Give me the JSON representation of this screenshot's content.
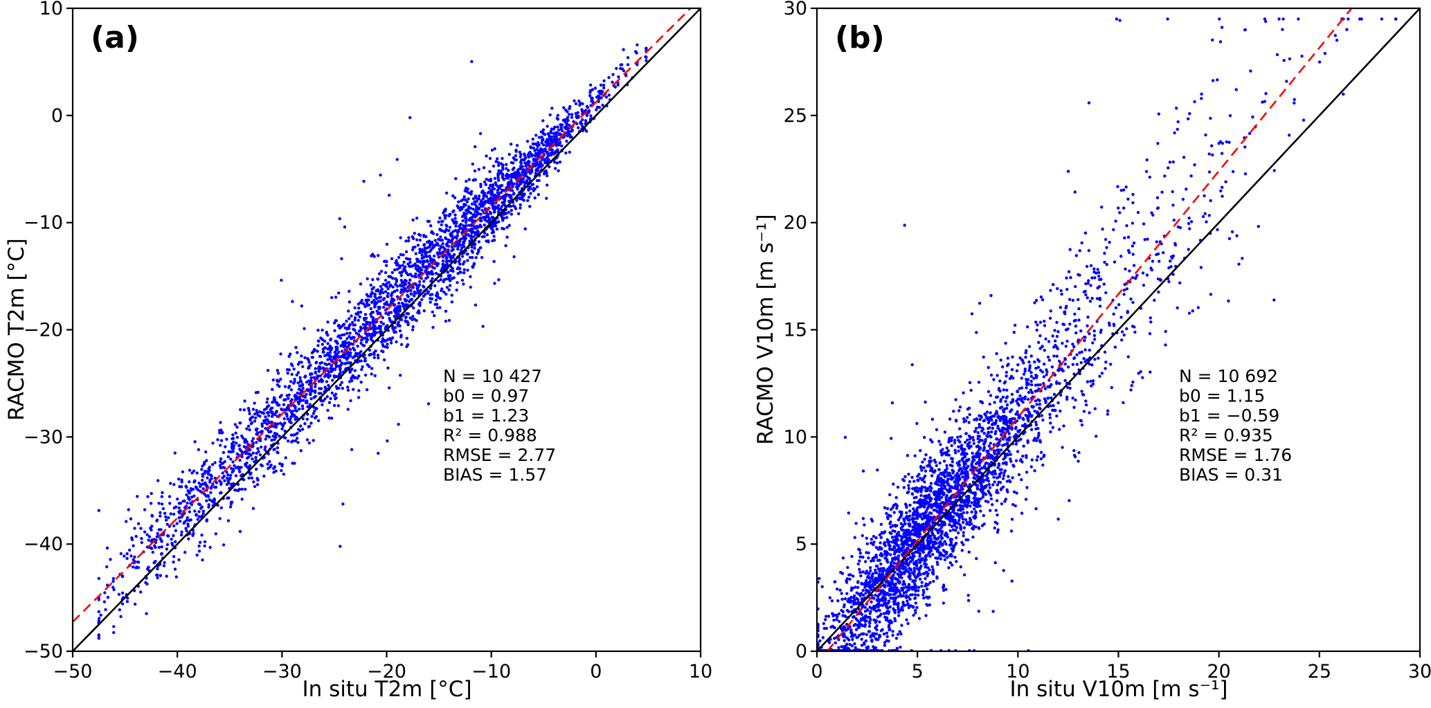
{
  "figure": {
    "background": "#ffffff",
    "colors": {
      "points": "#0000ff",
      "identity_line": "#000000",
      "fit_line": "#ff0000",
      "axes": "#000000",
      "text": "#000000"
    }
  },
  "chart_data": [
    {
      "type": "scatter",
      "panel_label": "(a)",
      "xlabel": "In situ T2m [°C]",
      "ylabel": "RACMO T2m [°C]",
      "xlim": [
        -50,
        10
      ],
      "ylim": [
        -50,
        10
      ],
      "xticks": [
        -50,
        -40,
        -30,
        -20,
        -10,
        0,
        10
      ],
      "xtick_labels": [
        "−50",
        "−40",
        "−30",
        "−20",
        "−10",
        "0",
        "10"
      ],
      "yticks": [
        -50,
        -40,
        -30,
        -20,
        -10,
        0,
        10
      ],
      "ytick_labels": [
        "−50",
        "−40",
        "−30",
        "−20",
        "−10",
        "0",
        "10"
      ],
      "grid": false,
      "legend": "none",
      "n_points": 10427,
      "identity_line": {
        "slope": 1,
        "intercept": 0,
        "style": "solid"
      },
      "fit_line": {
        "slope": 0.97,
        "intercept": 1.23,
        "style": "dashed"
      },
      "stats_lines": [
        "N = 10 427",
        "b0 = 0.97",
        "b1 = 1.23",
        "R² = 0.988",
        "RMSE = 2.77",
        "BIAS = 1.57"
      ],
      "scatter_gen": {
        "seed": 1234,
        "count": 3200,
        "x_mixture": [
          {
            "weight": 0.38,
            "mean": -9,
            "sd": 5.5
          },
          {
            "weight": 0.34,
            "mean": -20,
            "sd": 6.5
          },
          {
            "weight": 0.22,
            "mean": -31,
            "sd": 6.0
          },
          {
            "weight": 0.06,
            "mean": -41,
            "sd": 3.5
          }
        ],
        "x_clip": [
          -47.5,
          4.8
        ],
        "noise_sd": 2.2,
        "outlier_frac": 0.035,
        "outlier_mult": 3,
        "noise_taper": {
          "at": 6,
          "range": 20,
          "min": 0.3
        },
        "y_clip": [
          -49.5,
          9.0
        ]
      }
    },
    {
      "type": "scatter",
      "panel_label": "(b)",
      "xlabel": "In situ V10m [m s⁻¹]",
      "ylabel": "RACMO V10m [m s⁻¹]",
      "xlim": [
        0,
        30
      ],
      "ylim": [
        0,
        30
      ],
      "xticks": [
        0,
        5,
        10,
        15,
        20,
        25,
        30
      ],
      "xtick_labels": [
        "0",
        "5",
        "10",
        "15",
        "20",
        "25",
        "30"
      ],
      "yticks": [
        0,
        5,
        10,
        15,
        20,
        25,
        30
      ],
      "ytick_labels": [
        "0",
        "5",
        "10",
        "15",
        "20",
        "25",
        "30"
      ],
      "grid": false,
      "legend": "none",
      "n_points": 10692,
      "identity_line": {
        "slope": 1,
        "intercept": 0,
        "style": "solid"
      },
      "fit_line": {
        "slope": 1.15,
        "intercept": -0.59,
        "style": "dashed"
      },
      "stats_lines": [
        "N = 10 692",
        "b0 = 1.15",
        "b1 = −0.59",
        "R² = 0.935",
        "RMSE = 1.76",
        "BIAS = 0.31"
      ],
      "scatter_gen": {
        "seed": 77,
        "count": 3400,
        "x_mixture": [
          {
            "weight": 0.55,
            "mean": 4.5,
            "sd": 2.2
          },
          {
            "weight": 0.3,
            "mean": 7.5,
            "sd": 3.0
          },
          {
            "weight": 0.12,
            "mean": 13,
            "sd": 4.0
          },
          {
            "weight": 0.03,
            "mean": 19,
            "sd": 4.0
          }
        ],
        "x_clip": [
          0.05,
          28.8
        ],
        "noise_sd": 1.5,
        "outlier_frac": 0.05,
        "outlier_mult": 3,
        "noise_scale": {
          "x0": 9,
          "rate": 0.1,
          "max": 2.0
        },
        "y_clip": [
          0.03,
          29.5
        ]
      }
    }
  ]
}
